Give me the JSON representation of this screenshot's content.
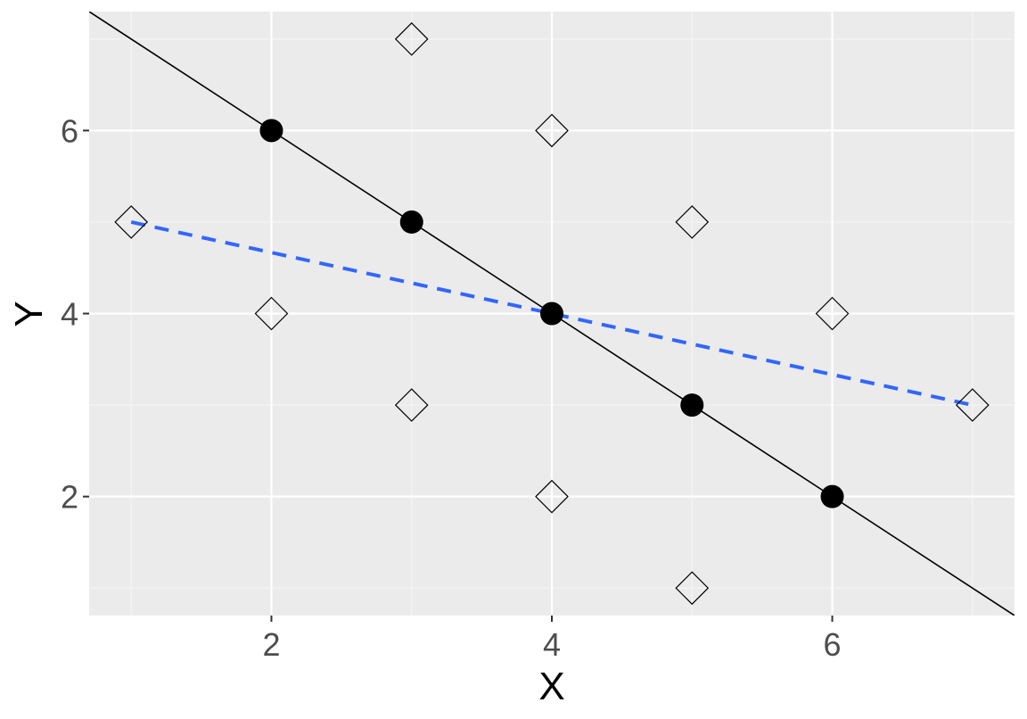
{
  "chart_data": {
    "type": "scatter",
    "xlabel": "X",
    "ylabel": "Y",
    "xlim": [
      0.7,
      7.3
    ],
    "ylim": [
      0.7,
      7.3
    ],
    "x_ticks": [
      2,
      4,
      6
    ],
    "y_ticks": [
      2,
      4,
      6
    ],
    "grid": true,
    "legend": "none",
    "colors": {
      "panel_background": "#ebebeb",
      "grid_major": "#ffffff",
      "grid_minor": "#f5f5f5",
      "filled_points": "#000000",
      "solid_line": "#000000",
      "dashed_line": "#3366ff"
    },
    "series": [
      {
        "marker": "filled-circle",
        "x": [
          2,
          3,
          4,
          5,
          6
        ],
        "y": [
          6,
          5,
          4,
          3,
          2
        ]
      },
      {
        "marker": "open-diamond",
        "x": [
          1,
          2,
          3,
          3,
          4,
          4,
          5,
          5,
          6,
          7
        ],
        "y": [
          5,
          4,
          7,
          3,
          6,
          2,
          5,
          1,
          4,
          3
        ]
      }
    ],
    "lines": [
      {
        "style": "solid",
        "intercept": 8,
        "slope": -1
      },
      {
        "style": "dashed",
        "x": [
          1,
          7
        ],
        "y": [
          5,
          3
        ]
      }
    ]
  }
}
